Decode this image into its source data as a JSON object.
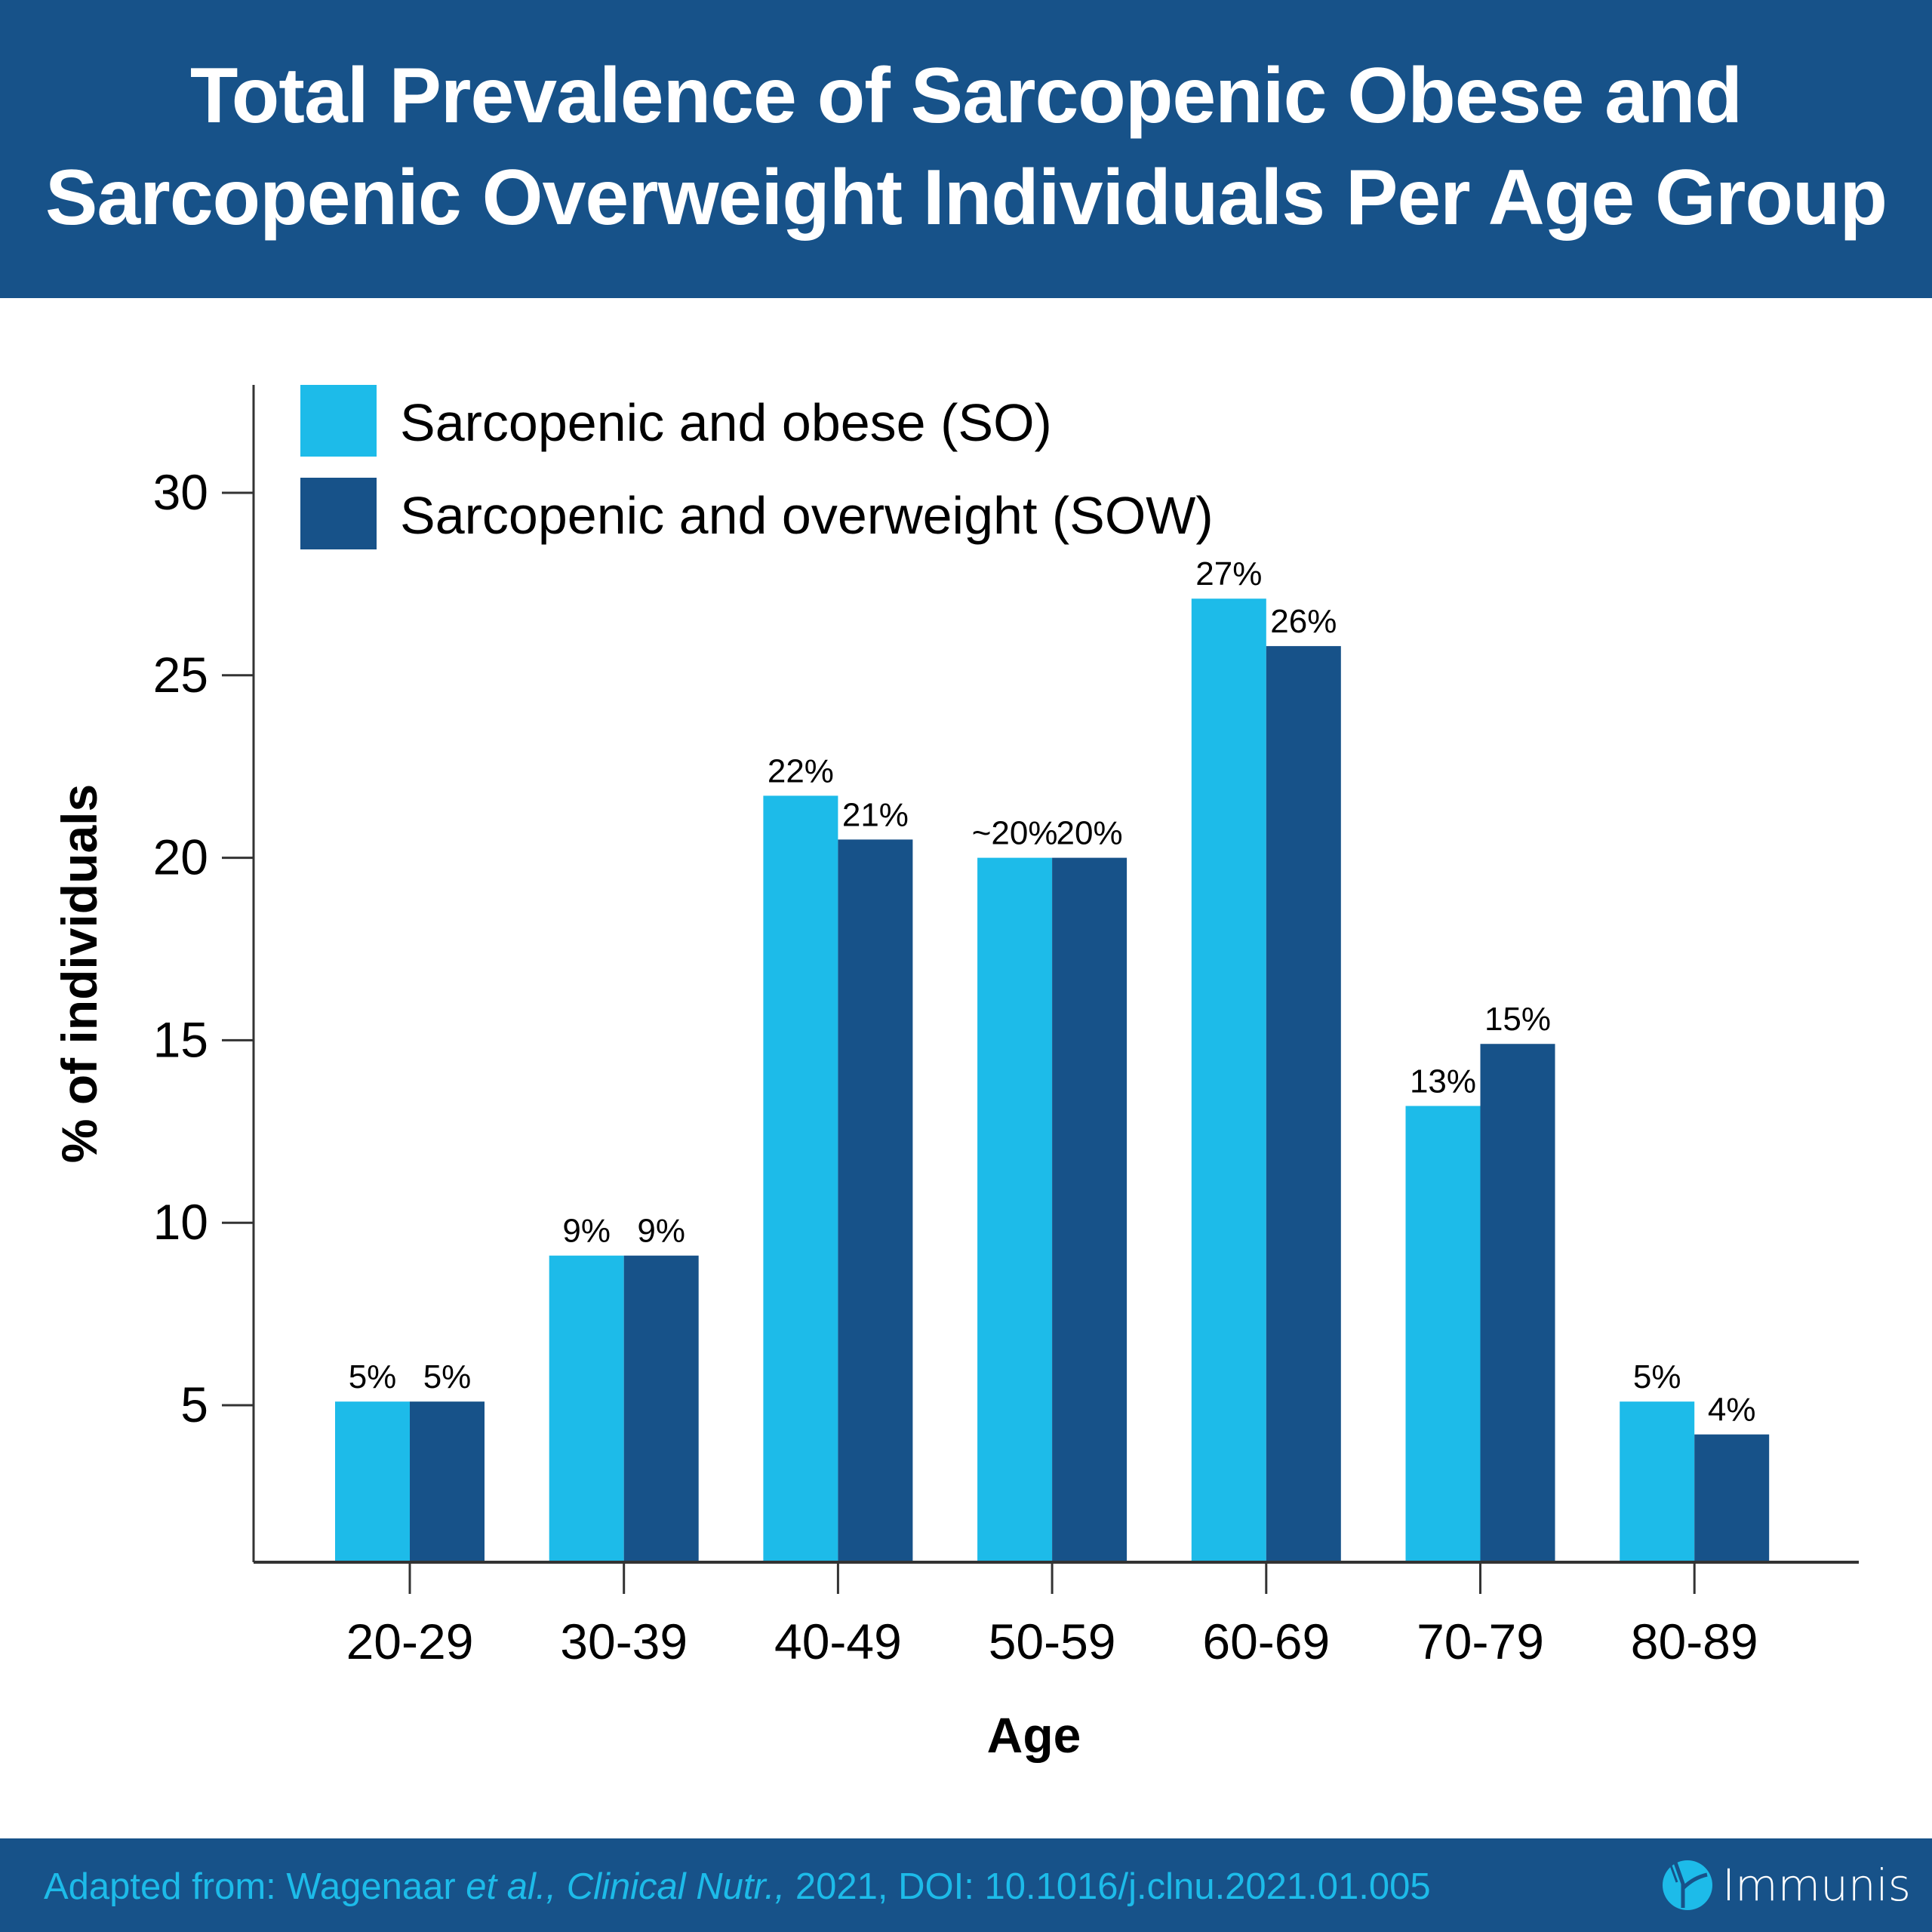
{
  "header": {
    "title_line1": "Total Prevalence of Sarcopenic Obese and",
    "title_line2": "Sarcopenic Overweight Individuals Per Age Group"
  },
  "footer": {
    "citation_prefix": "Adapted from: Wagenaar ",
    "citation_etal": "et al., Clinical Nutr.,",
    "citation_suffix": " 2021, DOI: 10.1016/j.clnu.2021.01.005",
    "brand_name": "Immunis",
    "brand_icon": "antibody-logo-icon"
  },
  "colors": {
    "header_bg": "#175289",
    "so": "#1dbbe9",
    "sow": "#175289",
    "citation": "#1dbbe9"
  },
  "chart_data": {
    "type": "bar",
    "title": "Total Prevalence of Sarcopenic Obese and Sarcopenic Overweight Individuals Per Age Group",
    "xlabel": "Age",
    "ylabel": "% of individuals",
    "categories": [
      "20-29",
      "30-39",
      "40-49",
      "50-59",
      "60-69",
      "70-79",
      "80-89"
    ],
    "yticks": [
      5,
      10,
      15,
      20,
      25,
      30
    ],
    "ylim": [
      0.7,
      32.5
    ],
    "grid": false,
    "legend_position": "top-left",
    "series": [
      {
        "name": "Sarcopenic and obese (SO)",
        "color": "#1dbbe9",
        "values": [
          5.1,
          9.1,
          21.7,
          20.0,
          27.1,
          13.2,
          5.1
        ],
        "labels": [
          "5%",
          "9%",
          "22%",
          "~20%",
          "27%",
          "13%",
          "5%"
        ]
      },
      {
        "name": "Sarcopenic and overweight (SOW)",
        "color": "#175289",
        "values": [
          5.1,
          9.1,
          20.5,
          20.0,
          25.8,
          14.9,
          4.2
        ],
        "labels": [
          "5%",
          "9%",
          "21%",
          "20%",
          "26%",
          "15%",
          "4%"
        ]
      }
    ]
  }
}
